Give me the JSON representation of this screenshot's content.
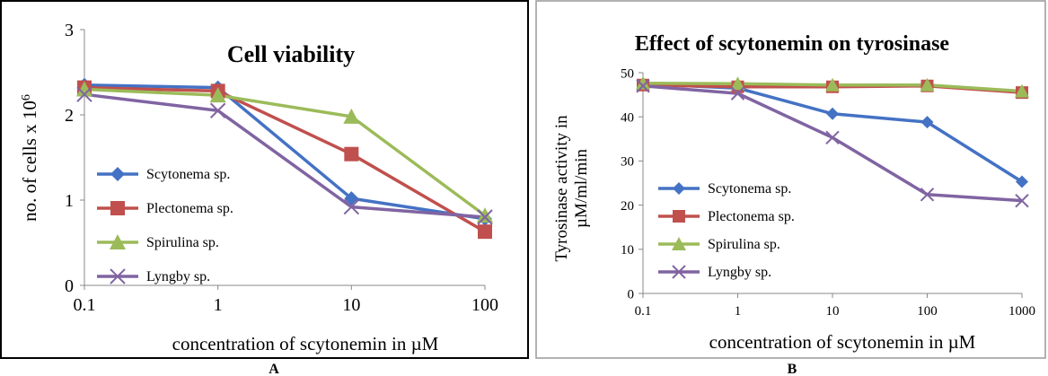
{
  "panel_labels": {
    "a": "A",
    "b": "B"
  },
  "chart_data": [
    {
      "type": "line",
      "title": "Cell viability",
      "xlabel": "concentration of scytonemin in µM",
      "ylabel": "no. of cells x 10",
      "ylabel_sup": "6",
      "x_scale": "log",
      "x": [
        0.1,
        1,
        10,
        100
      ],
      "x_ticks": [
        "0.1",
        "1",
        "10",
        "100"
      ],
      "ylim": [
        0,
        3
      ],
      "y_ticks": [
        "0",
        "1",
        "2",
        "3"
      ],
      "grid": false,
      "legend_position": "left",
      "series": [
        {
          "name": "Scytonema sp.",
          "color": "#4472C4",
          "marker": "diamond",
          "values": [
            2.35,
            2.32,
            1.02,
            0.78
          ]
        },
        {
          "name": "Plectonema sp.",
          "color": "#C0504D",
          "marker": "square",
          "values": [
            2.32,
            2.28,
            1.54,
            0.63
          ]
        },
        {
          "name": "Spirulina sp.",
          "color": "#9BBB59",
          "marker": "triangle",
          "values": [
            2.3,
            2.23,
            1.98,
            0.82
          ]
        },
        {
          "name": "Lyngby sp.",
          "color": "#8064A2",
          "marker": "x",
          "values": [
            2.24,
            2.05,
            0.92,
            0.8
          ]
        }
      ]
    },
    {
      "type": "line",
      "title": "Effect of scytonemin on tyrosinase",
      "xlabel": "concentration of scytonemin in µM",
      "ylabel_line1": "Tyrosinase activity  in",
      "ylabel_line2": "µM/ml/min",
      "x_scale": "log",
      "x": [
        0.1,
        1,
        10,
        100,
        1000
      ],
      "x_ticks": [
        "0.1",
        "1",
        "10",
        "100",
        "1000"
      ],
      "ylim": [
        0,
        50
      ],
      "y_ticks": [
        "0",
        "10",
        "20",
        "30",
        "40",
        "50"
      ],
      "grid": false,
      "legend_position": "left",
      "series": [
        {
          "name": "Scytonema sp.",
          "color": "#4472C4",
          "marker": "diamond",
          "values": [
            47.5,
            46.5,
            40.7,
            38.8,
            25.3
          ]
        },
        {
          "name": "Plectonema sp.",
          "color": "#C0504D",
          "marker": "square",
          "values": [
            47.2,
            46.8,
            46.8,
            47.0,
            45.5
          ]
        },
        {
          "name": "Spirulina sp.",
          "color": "#9BBB59",
          "marker": "triangle",
          "values": [
            47.6,
            47.5,
            47.2,
            47.2,
            45.8
          ]
        },
        {
          "name": "Lyngby sp.",
          "color": "#8064A2",
          "marker": "x",
          "values": [
            47.0,
            45.3,
            35.3,
            22.4,
            21.0
          ]
        }
      ]
    }
  ]
}
